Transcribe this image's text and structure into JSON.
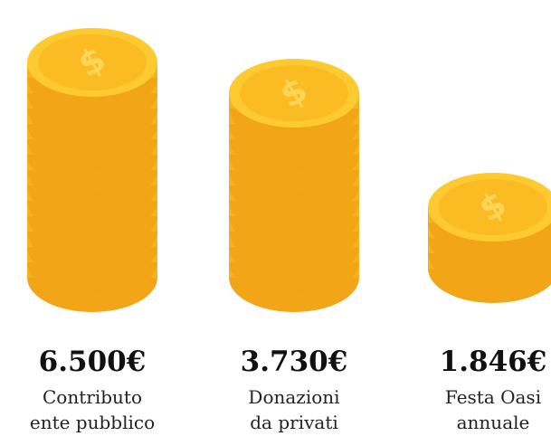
{
  "items": [
    {
      "amount": "6.500€",
      "label": [
        "Contributo",
        "ente pubblico"
      ]
    },
    {
      "amount": "3.730€",
      "label": [
        "Donazioni",
        "da privati"
      ]
    },
    {
      "amount": "1.846€",
      "label": [
        "Festa Oasi",
        "annuale"
      ]
    }
  ]
}
